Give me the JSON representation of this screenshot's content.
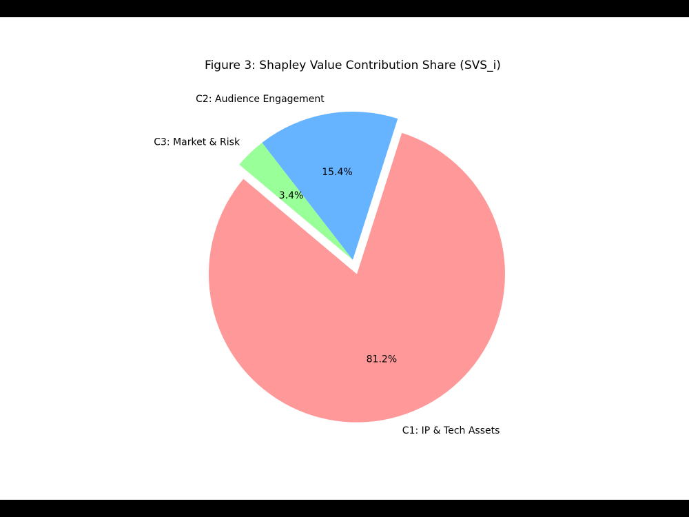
{
  "chart_data": {
    "type": "pie",
    "title": "Figure 3: Shapley Value Contribution Share (SVS_i)",
    "categories": [
      "C1: IP & Tech Assets",
      "C2: Audience Engagement",
      "C3: Market & Risk"
    ],
    "values": [
      81.2,
      15.4,
      3.4
    ],
    "value_labels": [
      "81.2%",
      "15.4%",
      "3.4%"
    ],
    "colors": [
      "#ff9999",
      "#66b3ff",
      "#99ff99"
    ],
    "explode": [
      0.1,
      0,
      0
    ],
    "startangle": 140
  }
}
